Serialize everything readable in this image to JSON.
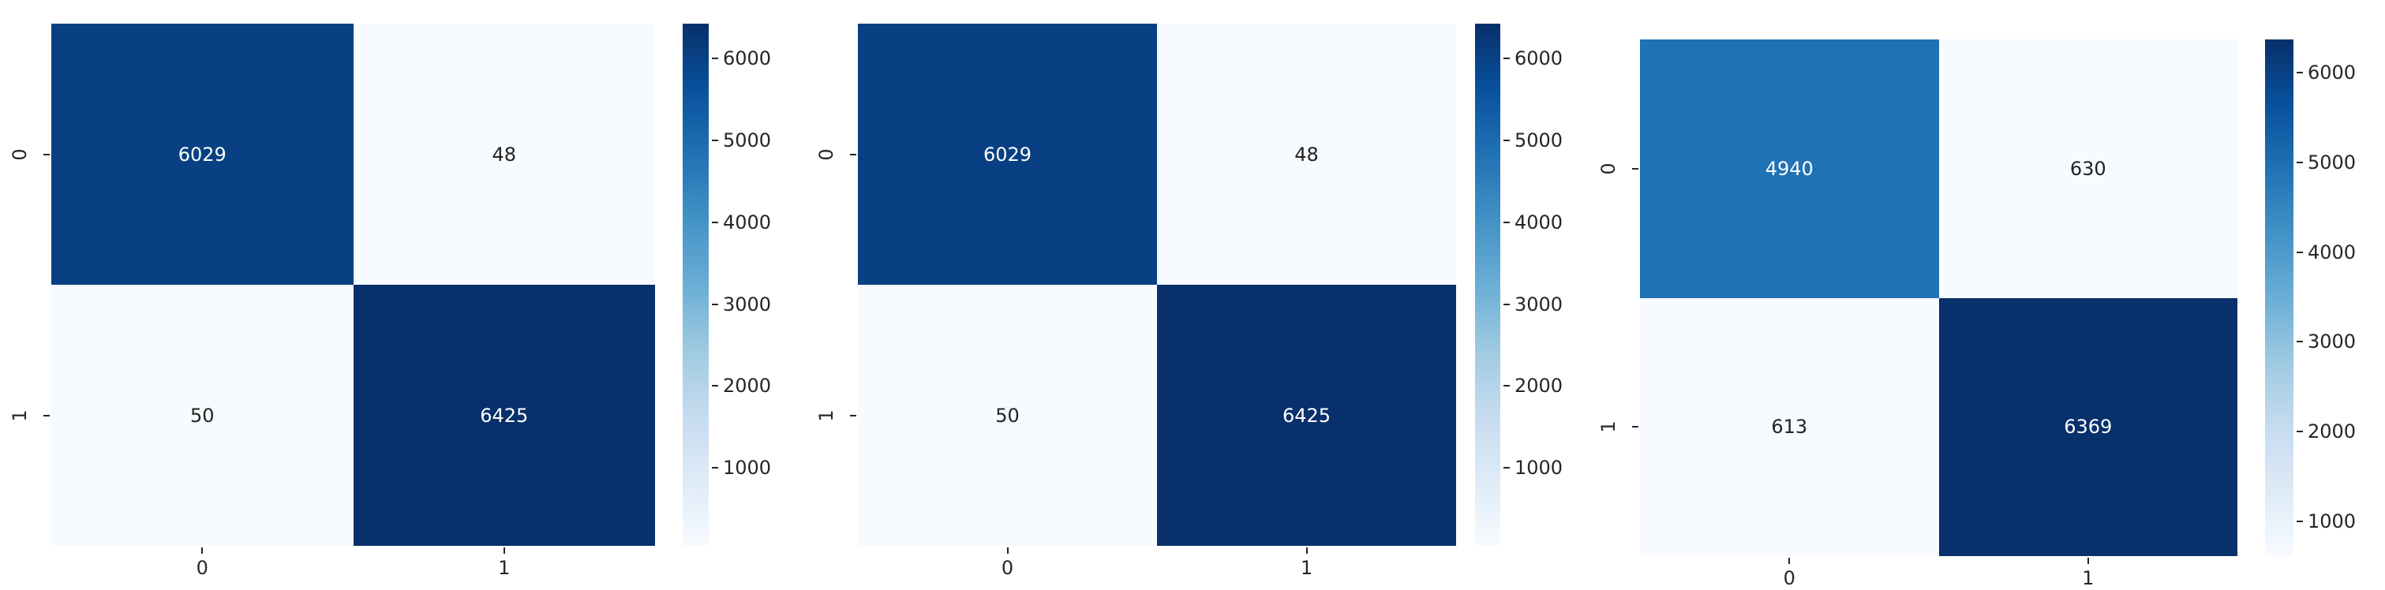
{
  "page": {
    "background": "#ffffff"
  },
  "colors": {
    "colormap_stops": [
      "#f7fbff",
      "#deebf7",
      "#c6dbef",
      "#9ecae1",
      "#6baed6",
      "#4292c6",
      "#2171b5",
      "#08519c",
      "#08306b"
    ],
    "annotation_light": "#ffffff",
    "annotation_dark": "#222222",
    "tick_color": "#262626"
  },
  "chart_data": [
    {
      "type": "heatmap",
      "title": "",
      "x_tick_labels": [
        "0",
        "1"
      ],
      "y_tick_labels": [
        "0",
        "1"
      ],
      "values": [
        [
          6029,
          48
        ],
        [
          50,
          6425
        ]
      ],
      "annotations": [
        [
          "6029",
          "48"
        ],
        [
          "50",
          "6425"
        ]
      ],
      "colormap": "Blues",
      "colorbar_ticks": [
        1000,
        2000,
        3000,
        4000,
        5000,
        6000
      ],
      "legend_position": "right",
      "grid": false
    },
    {
      "type": "heatmap",
      "title": "",
      "x_tick_labels": [
        "0",
        "1"
      ],
      "y_tick_labels": [
        "0",
        "1"
      ],
      "values": [
        [
          6029,
          48
        ],
        [
          50,
          6425
        ]
      ],
      "annotations": [
        [
          "6029",
          "48"
        ],
        [
          "50",
          "6425"
        ]
      ],
      "colormap": "Blues",
      "colorbar_ticks": [
        1000,
        2000,
        3000,
        4000,
        5000,
        6000
      ],
      "legend_position": "right",
      "grid": false
    },
    {
      "type": "heatmap",
      "title": "",
      "x_tick_labels": [
        "0",
        "1"
      ],
      "y_tick_labels": [
        "0",
        "1"
      ],
      "values": [
        [
          4940,
          630
        ],
        [
          613,
          6369
        ]
      ],
      "annotations": [
        [
          "4940",
          "630"
        ],
        [
          "613",
          "6369"
        ]
      ],
      "colormap": "Blues",
      "colorbar_ticks": [
        1000,
        2000,
        3000,
        4000,
        5000,
        6000
      ],
      "legend_position": "right",
      "grid": false
    }
  ]
}
